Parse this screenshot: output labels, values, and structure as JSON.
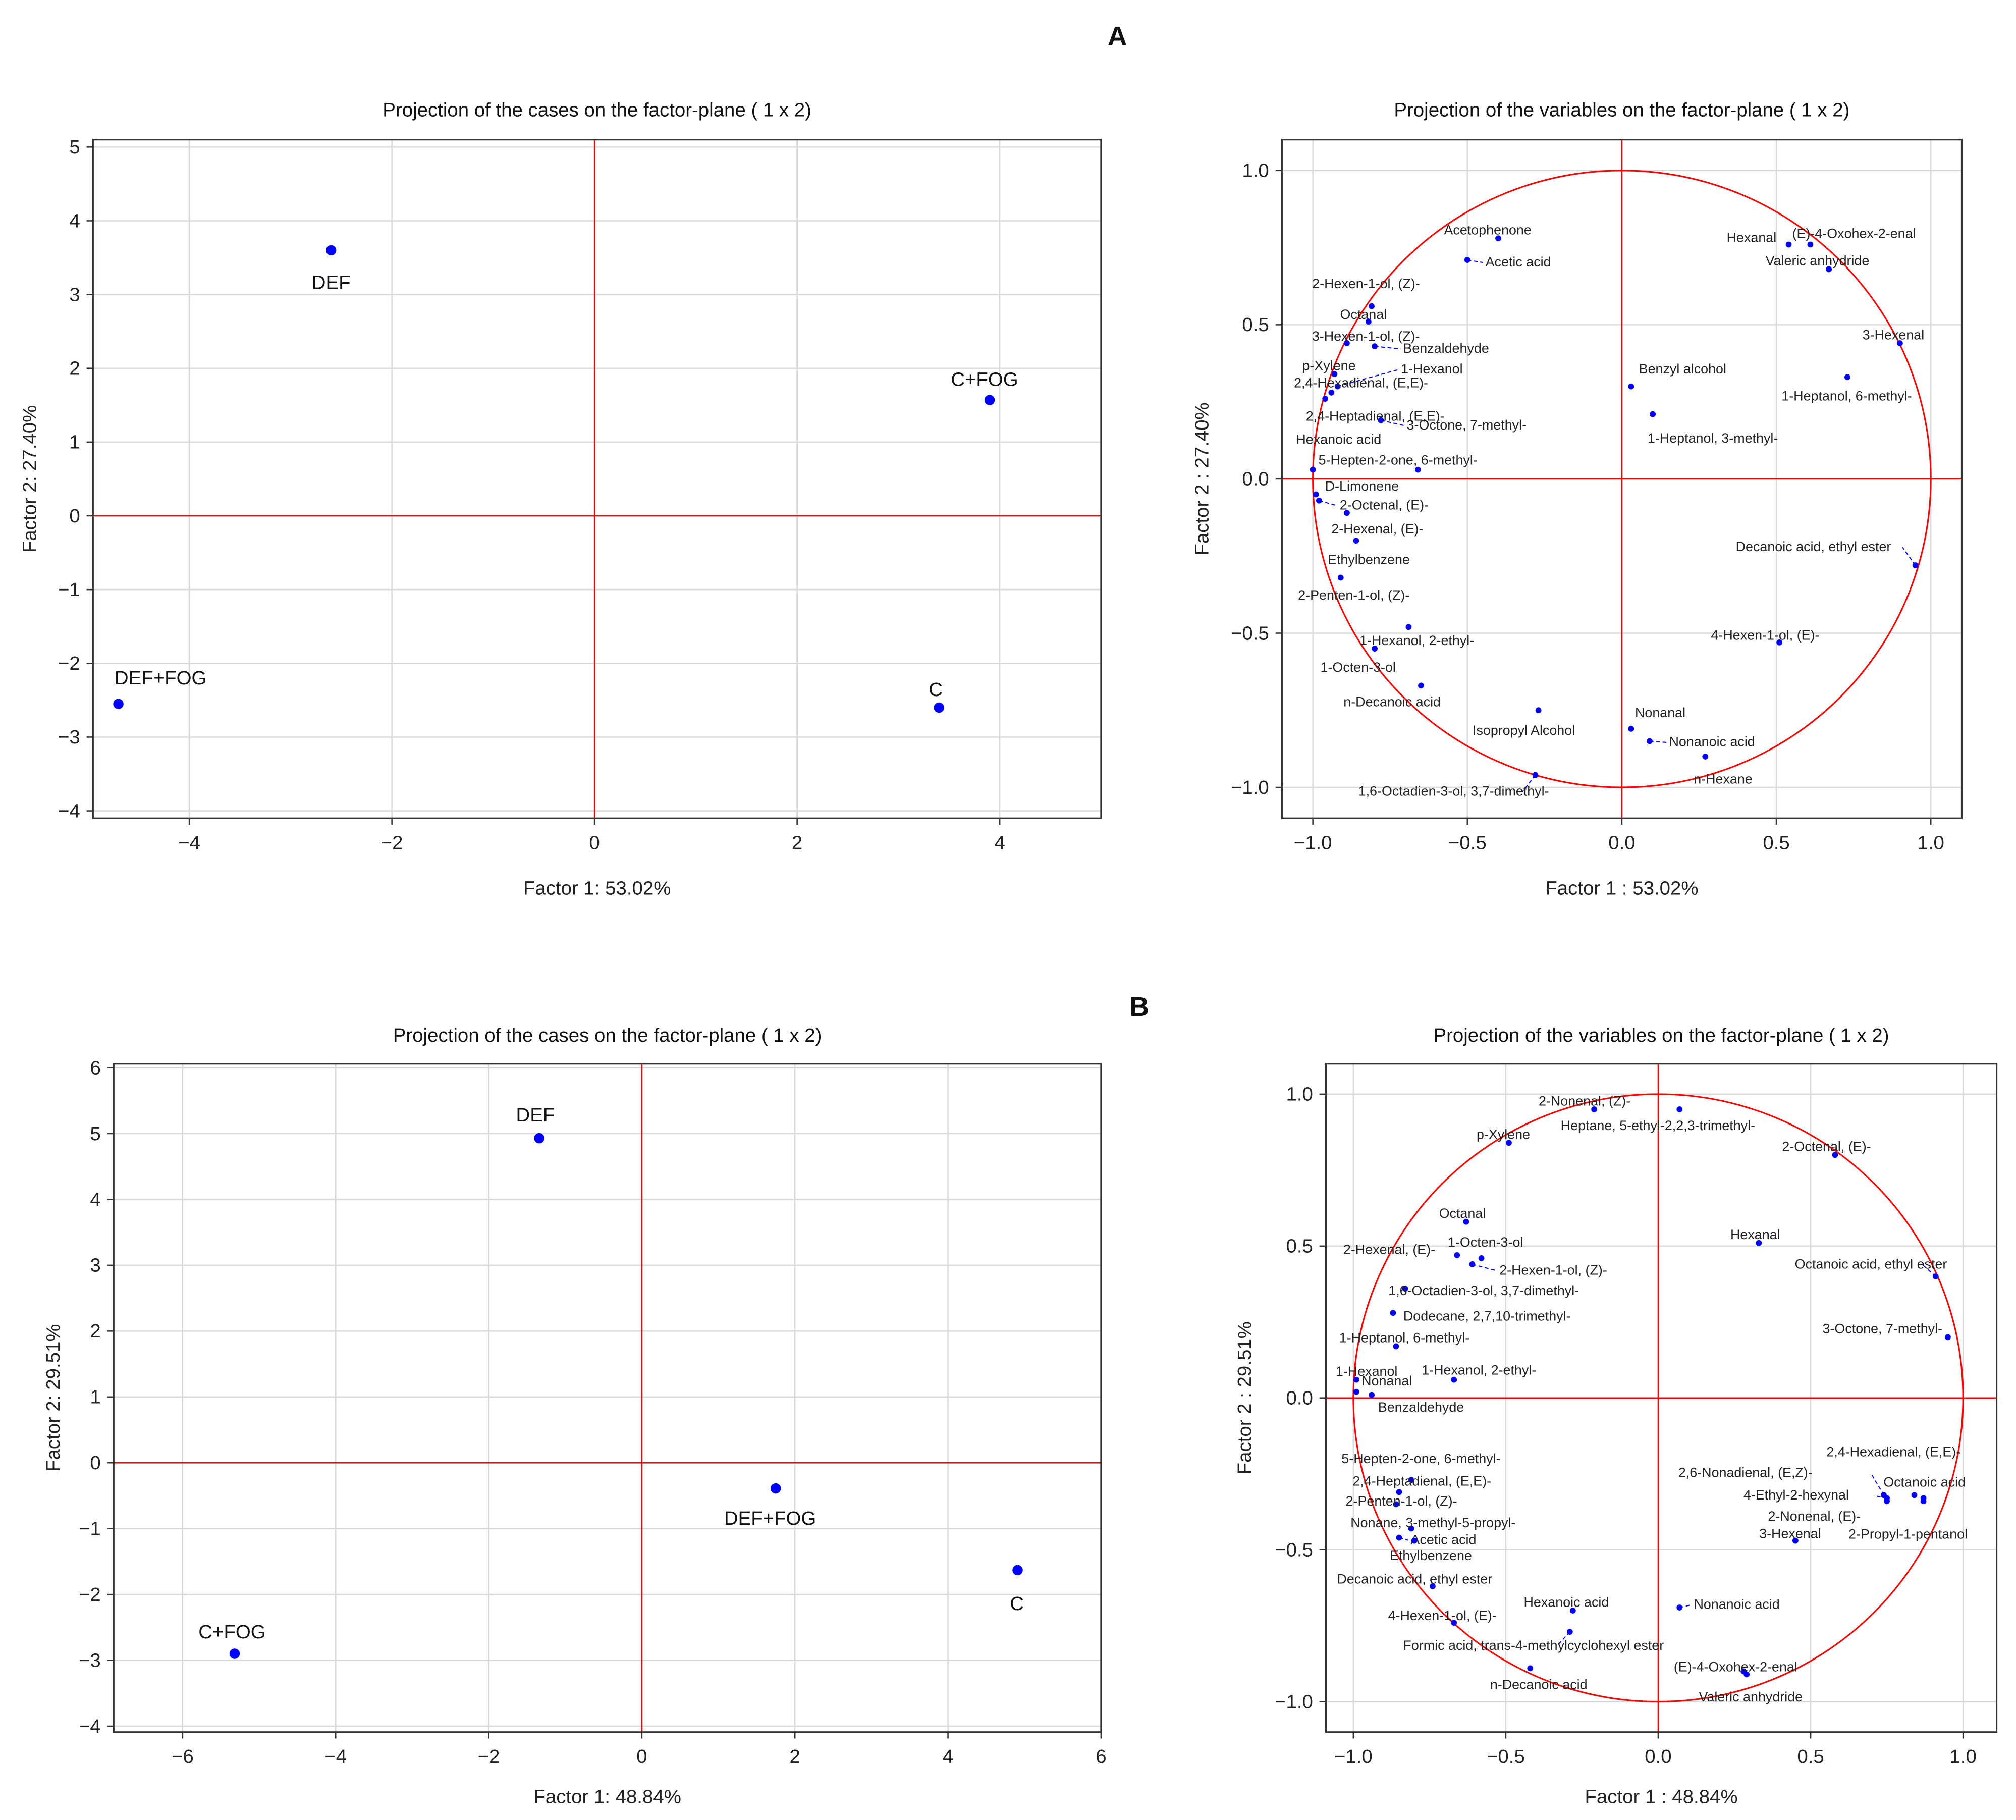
{
  "colors": {
    "point": "#0000ff",
    "axis_line": "#ff0000",
    "circle": "#ff0000",
    "grid": "#d9d9d9",
    "frame": "#333333"
  },
  "panels": {
    "A": "A",
    "B": "B"
  },
  "chart_data": [
    {
      "id": "A-cases",
      "type": "scatter",
      "title": "Projection of the cases on the factor-plane (  1 x   2)",
      "xlabel": "Factor 1: 53.02%",
      "ylabel": "Factor 2: 27.40%",
      "xlim": [
        -4.95,
        5.0
      ],
      "ylim": [
        -4.1,
        5.1
      ],
      "grid": true,
      "xticks": [
        -4,
        -2,
        0,
        2,
        4
      ],
      "xtick_labels": [
        "−4",
        "−2",
        "0",
        "2",
        "4"
      ],
      "yticks": [
        -4,
        -3,
        -2,
        -1,
        0,
        1,
        2,
        3,
        4,
        5
      ],
      "ytick_labels": [
        "−4",
        "−3",
        "−2",
        "−1",
        "0",
        "1",
        "2",
        "3",
        "4",
        "5"
      ],
      "points": [
        {
          "label": "DEF",
          "x": -2.6,
          "y": 3.6
        },
        {
          "label": "C+FOG",
          "x": 3.9,
          "y": 1.57
        },
        {
          "label": "DEF+FOG",
          "x": -4.7,
          "y": -2.55
        },
        {
          "label": "C",
          "x": 3.4,
          "y": -2.6
        }
      ]
    },
    {
      "id": "A-variables",
      "type": "scatter",
      "title": "Projection of the variables on the factor-plane (  1 x   2)",
      "xlabel": "Factor 1 : 53.02%",
      "ylabel": "Factor 2 : 27.40%",
      "xlim": [
        -1.1,
        1.1
      ],
      "ylim": [
        -1.1,
        1.1
      ],
      "grid": true,
      "unit_circle": true,
      "xticks": [
        -1,
        -0.5,
        0,
        0.5,
        1
      ],
      "xtick_labels": [
        "−1.0",
        "−0.5",
        "0.0",
        "0.5",
        "1.0"
      ],
      "yticks": [
        -1,
        -0.5,
        0,
        0.5,
        1
      ],
      "ytick_labels": [
        "−1.0",
        "−0.5",
        "0.0",
        "0.5",
        "1.0"
      ],
      "points": [
        {
          "label": "Acetophenone",
          "x": -0.4,
          "y": 0.78
        },
        {
          "label": "Acetic acid",
          "x": -0.5,
          "y": 0.71
        },
        {
          "label": "2-Hexen-1-ol, (Z)-",
          "x": -0.81,
          "y": 0.56
        },
        {
          "label": "Octanal",
          "x": -0.82,
          "y": 0.51
        },
        {
          "label": "3-Hexen-1-ol, (Z)-",
          "x": -0.89,
          "y": 0.44
        },
        {
          "label": "Benzaldehyde",
          "x": -0.8,
          "y": 0.43
        },
        {
          "label": "p-Xylene",
          "x": -0.93,
          "y": 0.34
        },
        {
          "label": "1-Hexanol",
          "x": -0.92,
          "y": 0.3
        },
        {
          "label": "2,4-Hexadienal, (E,E)-",
          "x": -0.94,
          "y": 0.28
        },
        {
          "label": "2,4-Heptadienal, (E,E)-",
          "x": -0.96,
          "y": 0.26
        },
        {
          "label": "3-Octone, 7-methyl-",
          "x": -0.78,
          "y": 0.19
        },
        {
          "label": "Hexanoic acid",
          "x": -1.0,
          "y": 0.03
        },
        {
          "label": "5-Hepten-2-one, 6-methyl-",
          "x": -0.66,
          "y": 0.03
        },
        {
          "label": "D-Limonene",
          "x": -0.99,
          "y": -0.05
        },
        {
          "label": "2-Octenal, (E)-",
          "x": -0.98,
          "y": -0.07
        },
        {
          "label": "2-Hexenal, (E)-",
          "x": -0.89,
          "y": -0.11
        },
        {
          "label": "Ethylbenzene",
          "x": -0.86,
          "y": -0.2
        },
        {
          "label": "2-Penten-1-ol, (Z)-",
          "x": -0.91,
          "y": -0.32
        },
        {
          "label": "1-Hexanol, 2-ethyl-",
          "x": -0.69,
          "y": -0.48
        },
        {
          "label": "1-Octen-3-ol",
          "x": -0.8,
          "y": -0.55
        },
        {
          "label": "n-Decanoic acid",
          "x": -0.65,
          "y": -0.67
        },
        {
          "label": "Isopropyl Alcohol",
          "x": -0.27,
          "y": -0.75
        },
        {
          "label": "1,6-Octadien-3-ol, 3,7-dimethyl-",
          "x": -0.28,
          "y": -0.96
        },
        {
          "label": "Nonanal",
          "x": 0.03,
          "y": -0.81
        },
        {
          "label": "Nonanoic acid",
          "x": 0.09,
          "y": -0.85
        },
        {
          "label": "n-Hexane",
          "x": 0.27,
          "y": -0.9
        },
        {
          "label": "Benzyl alcohol",
          "x": 0.03,
          "y": 0.3
        },
        {
          "label": "1-Heptanol, 3-methyl-",
          "x": 0.1,
          "y": 0.21
        },
        {
          "label": "Hexanal",
          "x": 0.54,
          "y": 0.76
        },
        {
          "label": "(E)-4-Oxohex-2-enal",
          "x": 0.61,
          "y": 0.76
        },
        {
          "label": "Valeric anhydride",
          "x": 0.67,
          "y": 0.68
        },
        {
          "label": "3-Hexenal",
          "x": 0.9,
          "y": 0.44
        },
        {
          "label": "1-Heptanol, 6-methyl-",
          "x": 0.73,
          "y": 0.33
        },
        {
          "label": "Decanoic acid, ethyl ester",
          "x": 0.95,
          "y": -0.28
        },
        {
          "label": "4-Hexen-1-ol, (E)-",
          "x": 0.51,
          "y": -0.53
        }
      ]
    },
    {
      "id": "B-cases",
      "type": "scatter",
      "title": "Projection of the cases on the factor-plane (  1 x   2)",
      "xlabel": "Factor 1: 48.84%",
      "ylabel": "Factor 2: 29.51%",
      "xlim": [
        -6.9,
        6.0
      ],
      "ylim": [
        -4.09,
        6.06
      ],
      "grid": true,
      "xticks": [
        -6,
        -4,
        -2,
        0,
        2,
        4,
        6
      ],
      "xtick_labels": [
        "−6",
        "−4",
        "−2",
        "0",
        "2",
        "4",
        "6"
      ],
      "yticks": [
        -4,
        -3,
        -2,
        -1,
        0,
        1,
        2,
        3,
        4,
        5,
        6
      ],
      "ytick_labels": [
        "−4",
        "−3",
        "−2",
        "−1",
        "0",
        "1",
        "2",
        "3",
        "4",
        "5",
        "6"
      ],
      "points": [
        {
          "label": "DEF",
          "x": -1.34,
          "y": 4.93
        },
        {
          "label": "DEF+FOG",
          "x": 1.75,
          "y": -0.39
        },
        {
          "label": "C",
          "x": 4.91,
          "y": -1.63
        },
        {
          "label": "C+FOG",
          "x": -5.32,
          "y": -2.9
        }
      ]
    },
    {
      "id": "B-variables",
      "type": "scatter",
      "title": "Projection of the variables on the factor-plane (  1 x   2)",
      "xlabel": "Factor 1 : 48.84%",
      "ylabel": "Factor 2 : 29.51%",
      "xlim": [
        -1.09,
        1.11
      ],
      "ylim": [
        -1.1,
        1.1
      ],
      "grid": true,
      "unit_circle": true,
      "xticks": [
        -1,
        -0.5,
        0,
        0.5,
        1
      ],
      "xtick_labels": [
        "−1.0",
        "−0.5",
        "0.0",
        "0.5",
        "1.0"
      ],
      "yticks": [
        -1,
        -0.5,
        0,
        0.5,
        1
      ],
      "ytick_labels": [
        "−1.0",
        "−0.5",
        "0.0",
        "0.5",
        "1.0"
      ],
      "points": [
        {
          "label": "2-Nonenal, (Z)-",
          "x": -0.21,
          "y": 0.95
        },
        {
          "label": "Heptane, 5-ethyl-2,2,3-trimethyl-",
          "x": 0.07,
          "y": 0.95
        },
        {
          "label": "p-Xylene",
          "x": -0.49,
          "y": 0.84
        },
        {
          "label": "2-Octenal, (E)-",
          "x": 0.58,
          "y": 0.8
        },
        {
          "label": "Octanal",
          "x": -0.63,
          "y": 0.58
        },
        {
          "label": "2-Hexenal, (E)-",
          "x": -0.66,
          "y": 0.47
        },
        {
          "label": "1-Octen-3-ol",
          "x": -0.58,
          "y": 0.46
        },
        {
          "label": "2-Hexen-1-ol, (Z)-",
          "x": -0.61,
          "y": 0.44
        },
        {
          "label": "Hexanal",
          "x": 0.33,
          "y": 0.51
        },
        {
          "label": "Octanoic acid, ethyl ester",
          "x": 0.91,
          "y": 0.4
        },
        {
          "label": "1,6-Octadien-3-ol, 3,7-dimethyl-",
          "x": -0.83,
          "y": 0.36
        },
        {
          "label": "Dodecane, 2,7,10-trimethyl-",
          "x": -0.87,
          "y": 0.28
        },
        {
          "label": "1-Heptanol, 6-methyl-",
          "x": -0.86,
          "y": 0.17
        },
        {
          "label": "3-Octone, 7-methyl-",
          "x": 0.95,
          "y": 0.2
        },
        {
          "label": "1-Hexanol",
          "x": -0.99,
          "y": 0.06
        },
        {
          "label": "1-Hexanol, 2-ethyl-",
          "x": -0.67,
          "y": 0.06
        },
        {
          "label": "Nonanal",
          "x": -0.99,
          "y": 0.02
        },
        {
          "label": "Benzaldehyde",
          "x": -0.94,
          "y": 0.01
        },
        {
          "label": "5-Hepten-2-one, 6-methyl-",
          "x": -0.81,
          "y": -0.27
        },
        {
          "label": "2,4-Heptadienal, (E,E)-",
          "x": -0.85,
          "y": -0.31
        },
        {
          "label": "2-Penten-1-ol, (Z)-",
          "x": -0.86,
          "y": -0.35
        },
        {
          "label": "Nonane, 3-methyl-5-propyl-",
          "x": -0.81,
          "y": -0.43
        },
        {
          "label": "Acetic acid",
          "x": -0.85,
          "y": -0.46
        },
        {
          "label": "Ethylbenzene",
          "x": -0.8,
          "y": -0.47
        },
        {
          "label": "Decanoic acid, ethyl ester",
          "x": -0.74,
          "y": -0.62
        },
        {
          "label": "4-Hexen-1-ol, (E)-",
          "x": -0.67,
          "y": -0.74
        },
        {
          "label": "Hexanoic acid",
          "x": -0.28,
          "y": -0.7
        },
        {
          "label": "Formic acid, trans-4-methylcyclohexyl ester",
          "x": -0.29,
          "y": -0.77
        },
        {
          "label": "n-Decanoic acid",
          "x": -0.42,
          "y": -0.89
        },
        {
          "label": "Nonanoic acid",
          "x": 0.07,
          "y": -0.69
        },
        {
          "label": "(E)-4-Oxohex-2-enal",
          "x": 0.28,
          "y": -0.9
        },
        {
          "label": "Valeric anhydride",
          "x": 0.29,
          "y": -0.91
        },
        {
          "label": "2,6-Nonadienal, (E,Z)-",
          "x": 0.74,
          "y": -0.32
        },
        {
          "label": "4-Ethyl-2-hexynal",
          "x": 0.75,
          "y": -0.33
        },
        {
          "label": "2-Nonenal, (E)-",
          "x": 0.75,
          "y": -0.34
        },
        {
          "label": "2,4-Hexadienal, (E,E)-",
          "x": 0.84,
          "y": -0.32
        },
        {
          "label": "Octanoic acid",
          "x": 0.87,
          "y": -0.33
        },
        {
          "label": "2-Propyl-1-pentanol",
          "x": 0.87,
          "y": -0.34
        },
        {
          "label": "3-Hexenal",
          "x": 0.45,
          "y": -0.47
        }
      ]
    }
  ]
}
